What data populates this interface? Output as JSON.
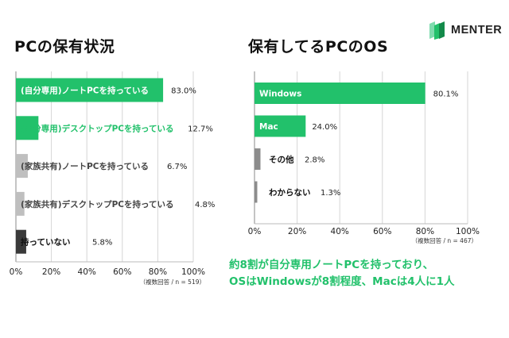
{
  "brand": {
    "name": "MENTER",
    "color": "#22c16b"
  },
  "chart_data": [
    {
      "type": "bar",
      "orientation": "horizontal",
      "title": "PCの保有状況",
      "categories": [
        "(自分専用)ノートPCを持っている",
        "(自分専用)デスクトップPCを持っている",
        "(家族共有)ノートPCを持っている",
        "(家族共有)デスクトップPCを持っている",
        "持っていない"
      ],
      "values": [
        83.0,
        12.7,
        6.7,
        4.8,
        5.8
      ],
      "value_labels": [
        "83.0%",
        "12.7%",
        "6.7%",
        "4.8%",
        "5.8%"
      ],
      "colors": [
        "#22c16b",
        "#22c16b",
        "#bfbfbf",
        "#bfbfbf",
        "#3a3a3a"
      ],
      "label_colors": [
        "#ffffff",
        "#22c16b",
        "#444444",
        "#444444",
        "#111111"
      ],
      "xlim": [
        0,
        100
      ],
      "ticks": [
        0,
        20,
        40,
        60,
        80,
        100
      ],
      "tick_labels": [
        "0%",
        "20%",
        "40%",
        "60%",
        "80%",
        "100%"
      ],
      "grid": true,
      "note": "（複数回答 / n = 519）"
    },
    {
      "type": "bar",
      "orientation": "horizontal",
      "title": "保有してるPCのOS",
      "categories": [
        "Windows",
        "Mac",
        "その他",
        "わからない"
      ],
      "values": [
        80.1,
        24.0,
        2.8,
        1.3
      ],
      "value_labels": [
        "80.1%",
        "24.0%",
        "2.8%",
        "1.3%"
      ],
      "colors": [
        "#22c16b",
        "#22c16b",
        "#8c8c8c",
        "#8c8c8c"
      ],
      "label_colors": [
        "#ffffff",
        "#ffffff",
        "#111111",
        "#111111"
      ],
      "xlim": [
        0,
        100
      ],
      "ticks": [
        0,
        20,
        40,
        60,
        80,
        100
      ],
      "tick_labels": [
        "0%",
        "20%",
        "40%",
        "60%",
        "80%",
        "100%"
      ],
      "grid": true,
      "note": "（複数回答 / n = 467）"
    }
  ],
  "summary": {
    "line1": "約8割が自分専用ノートPCを持っており、",
    "line2": "OSはWindowsが8割程度、Macは4人に1人"
  }
}
